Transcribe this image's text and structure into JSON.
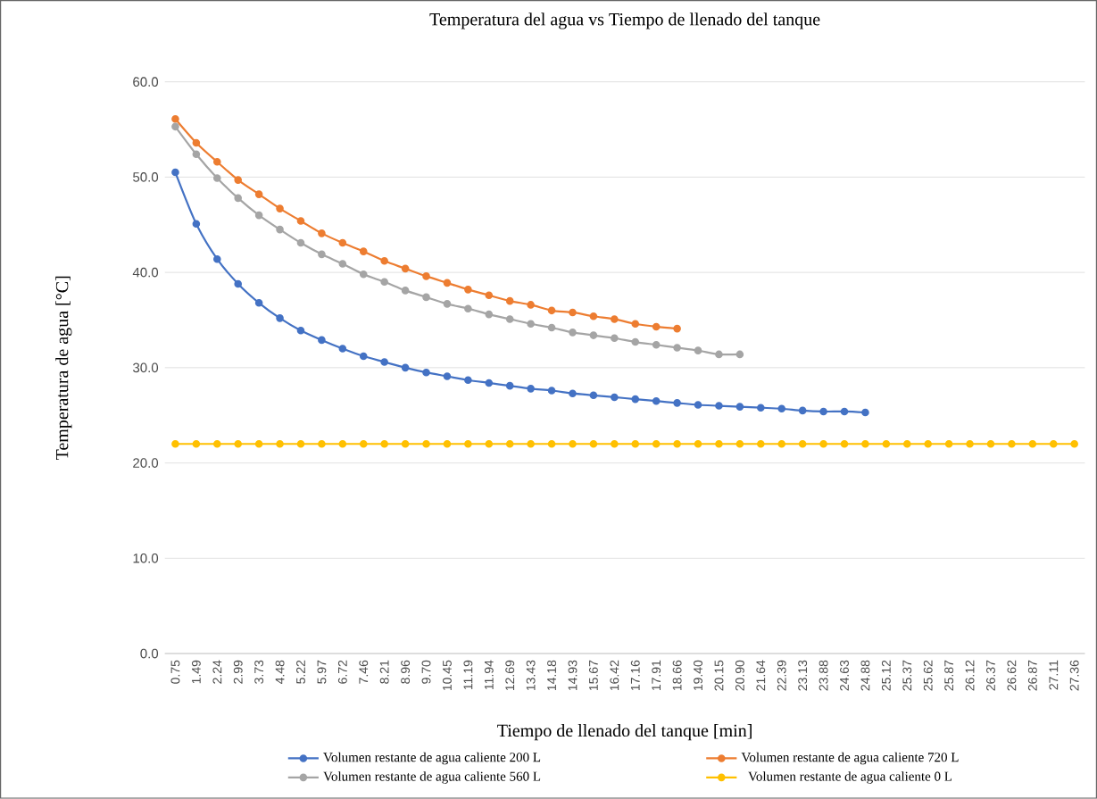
{
  "chart_data": {
    "type": "line",
    "title": "Temperatura del agua vs Tiempo de llenado del tanque",
    "xlabel": "Tiempo de llenado del tanque [min]",
    "ylabel": "Temperatura de agua [°C]",
    "categories": [
      "0.75",
      "1.49",
      "2.24",
      "2.99",
      "3.73",
      "4.48",
      "5.22",
      "5.97",
      "6.72",
      "7.46",
      "8.21",
      "8.96",
      "9.70",
      "10.45",
      "11.19",
      "11.94",
      "12.69",
      "13.43",
      "14.18",
      "14.93",
      "15.67",
      "16.42",
      "17.16",
      "17.91",
      "18.66",
      "19.40",
      "20.15",
      "20.90",
      "21.64",
      "22.39",
      "23.13",
      "23.88",
      "24.63",
      "24.88",
      "25.12",
      "25.37",
      "25.62",
      "25.87",
      "26.12",
      "26.37",
      "26.62",
      "26.87",
      "27.11",
      "27.36"
    ],
    "series": [
      {
        "name": "Volumen restante de agua caliente 200 L",
        "color": "#4472c4",
        "values": [
          50.5,
          45.1,
          41.4,
          38.8,
          36.8,
          35.2,
          33.9,
          32.9,
          32.0,
          31.2,
          30.6,
          30.0,
          29.5,
          29.1,
          28.7,
          28.4,
          28.1,
          27.8,
          27.6,
          27.3,
          27.1,
          26.9,
          26.7,
          26.5,
          26.3,
          26.1,
          26.0,
          25.9,
          25.8,
          25.7,
          25.5,
          25.4,
          25.4,
          25.3,
          null,
          null,
          null,
          null,
          null,
          null,
          null,
          null,
          null,
          null
        ]
      },
      {
        "name": "Volumen restante de agua caliente 720 L",
        "color": "#ed7d31",
        "values": [
          56.1,
          53.6,
          51.6,
          49.7,
          48.2,
          46.7,
          45.4,
          44.1,
          43.1,
          42.2,
          41.2,
          40.4,
          39.6,
          38.9,
          38.2,
          37.6,
          37.0,
          36.6,
          36.0,
          35.8,
          35.4,
          35.1,
          34.6,
          34.3,
          34.1,
          null,
          null,
          null,
          null,
          null,
          null,
          null,
          null,
          null,
          null,
          null,
          null,
          null,
          null,
          null,
          null,
          null,
          null,
          null
        ]
      },
      {
        "name": "Volumen restante de agua caliente 560 L",
        "color": "#a5a5a5",
        "values": [
          55.3,
          52.4,
          49.9,
          47.8,
          46.0,
          44.5,
          43.1,
          41.9,
          40.9,
          39.8,
          39.0,
          38.1,
          37.4,
          36.7,
          36.2,
          35.6,
          35.1,
          34.6,
          34.2,
          33.7,
          33.4,
          33.1,
          32.7,
          32.4,
          32.1,
          31.8,
          31.4,
          31.4,
          null,
          null,
          null,
          null,
          null,
          null,
          null,
          null,
          null,
          null,
          null,
          null,
          null,
          null,
          null,
          null
        ]
      },
      {
        "name": "Volumen restante de agua caliente 0 L",
        "color": "#ffc000",
        "values": [
          22.0,
          22.0,
          22.0,
          22.0,
          22.0,
          22.0,
          22.0,
          22.0,
          22.0,
          22.0,
          22.0,
          22.0,
          22.0,
          22.0,
          22.0,
          22.0,
          22.0,
          22.0,
          22.0,
          22.0,
          22.0,
          22.0,
          22.0,
          22.0,
          22.0,
          22.0,
          22.0,
          22.0,
          22.0,
          22.0,
          22.0,
          22.0,
          22.0,
          22.0,
          22.0,
          22.0,
          22.0,
          22.0,
          22.0,
          22.0,
          22.0,
          22.0,
          22.0,
          22.0
        ]
      }
    ],
    "ylim": [
      0,
      60
    ],
    "yticks": [
      {
        "value": 0,
        "label": "0.0"
      },
      {
        "value": 10,
        "label": "10.0"
      },
      {
        "value": 20,
        "label": "20.0"
      },
      {
        "value": 30,
        "label": "30.0"
      },
      {
        "value": 40,
        "label": "40.0"
      },
      {
        "value": 50,
        "label": "50.0"
      },
      {
        "value": 60,
        "label": "60.0"
      }
    ],
    "grid": "y",
    "legend": "bottom",
    "marker": "circle",
    "line_style": "solid"
  }
}
